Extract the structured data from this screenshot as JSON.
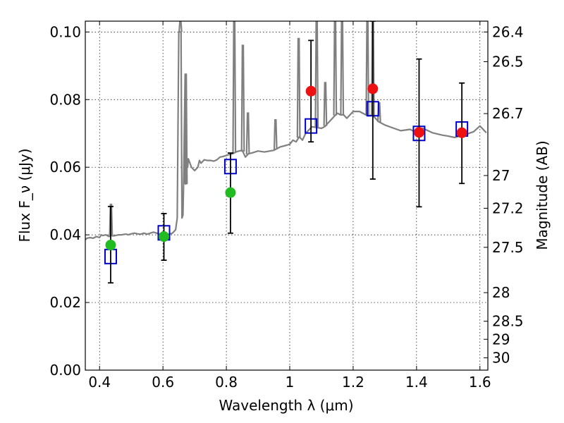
{
  "chart_data": {
    "type": "scatter",
    "xlabel": "Wavelength λ (μm)",
    "ylabel": "Flux F_ν (μJy)",
    "y2label": "Magnitude (AB)",
    "xlim": [
      0.355,
      1.625
    ],
    "ylim": [
      0.0,
      0.1032
    ],
    "grid": true,
    "x_ticks": [
      0.4,
      0.6,
      0.8,
      1.0,
      1.2,
      1.4,
      1.6
    ],
    "x_tick_labels": [
      "0.4",
      "0.6",
      "0.8",
      "1",
      "1.2",
      "1.4",
      "1.6"
    ],
    "y_ticks": [
      0.0,
      0.02,
      0.04,
      0.06,
      0.08,
      0.1
    ],
    "y_tick_labels": [
      "0.00",
      "0.02",
      "0.04",
      "0.06",
      "0.08",
      "0.10"
    ],
    "y2_ticks": [
      26.4,
      26.5,
      26.7,
      27,
      27.2,
      27.5,
      28,
      28.5,
      29,
      30
    ],
    "y2_tick_labels": [
      "26.4",
      "26.5",
      "26.7",
      "27",
      "27.2",
      "27.5",
      "28",
      "28.5",
      "29",
      "30"
    ],
    "colors": {
      "spectrum": "#808080",
      "model_squares": "#0000cc",
      "green_points": "#22bb22",
      "red_points": "#ee1111",
      "errorbars": "#000000"
    },
    "series": [
      {
        "type": "line",
        "x": [
          0.355,
          0.36,
          0.37,
          0.38,
          0.39,
          0.4,
          0.405,
          0.41,
          0.42,
          0.43,
          0.435,
          0.44,
          0.45,
          0.46,
          0.47,
          0.48,
          0.485,
          0.49,
          0.5,
          0.51,
          0.52,
          0.53,
          0.54,
          0.55,
          0.56,
          0.57,
          0.58,
          0.59,
          0.6,
          0.61,
          0.62,
          0.63,
          0.64,
          0.645,
          0.65,
          0.652,
          0.655,
          0.656,
          0.657,
          0.66,
          0.663,
          0.665,
          0.67,
          0.672,
          0.675,
          0.678,
          0.68,
          0.69,
          0.7,
          0.71,
          0.715,
          0.72,
          0.73,
          0.74,
          0.75,
          0.76,
          0.77,
          0.78,
          0.79,
          0.8,
          0.81,
          0.82,
          0.83,
          0.84,
          0.85,
          0.86,
          0.87,
          0.88,
          0.9,
          0.92,
          0.95,
          0.97,
          0.99,
          1.0,
          1.01,
          1.02,
          1.03,
          1.04,
          1.05,
          1.06,
          1.07,
          1.08,
          1.1,
          1.11,
          1.12,
          1.13,
          1.14,
          1.15,
          1.16,
          1.17,
          1.18,
          1.2,
          1.22,
          1.24,
          1.25,
          1.26,
          1.28,
          1.3,
          1.32,
          1.35,
          1.38,
          1.4,
          1.42,
          1.45,
          1.48,
          1.5,
          1.52,
          1.55,
          1.58,
          1.6,
          1.62
        ],
        "y": [
          0.0385,
          0.039,
          0.0392,
          0.039,
          0.0395,
          0.0392,
          0.04,
          0.0398,
          0.04,
          0.0395,
          0.04,
          0.0397,
          0.0398,
          0.04,
          0.04,
          0.0402,
          0.0402,
          0.04,
          0.0403,
          0.0405,
          0.0403,
          0.0402,
          0.0405,
          0.0402,
          0.0405,
          0.0408,
          0.0405,
          0.0402,
          0.0398,
          0.04,
          0.0402,
          0.0405,
          0.0415,
          0.045,
          0.1,
          0.1,
          0.1,
          0.1,
          0.1,
          0.045,
          0.0458,
          0.055,
          0.0875,
          0.055,
          0.062,
          0.06,
          0.0625,
          0.06,
          0.059,
          0.06,
          0.062,
          0.0612,
          0.0622,
          0.062,
          0.062,
          0.0618,
          0.0622,
          0.063,
          0.0632,
          0.0635,
          0.0638,
          0.064,
          0.0645,
          0.0648,
          0.065,
          0.063,
          0.064,
          0.0642,
          0.0648,
          0.0645,
          0.065,
          0.066,
          0.0665,
          0.0668,
          0.068,
          0.0675,
          0.069,
          0.068,
          0.07,
          0.071,
          0.072,
          0.0718,
          0.0715,
          0.072,
          0.073,
          0.074,
          0.075,
          0.076,
          0.0755,
          0.0755,
          0.0745,
          0.0765,
          0.0765,
          0.0755,
          0.0752,
          0.0755,
          0.0735,
          0.0725,
          0.0718,
          0.0708,
          0.0712,
          0.0702,
          0.0715,
          0.0702,
          0.0695,
          0.0692,
          0.0688,
          0.0695,
          0.0705,
          0.0722,
          0.0702
        ],
        "emission_lines": [
          {
            "x": 0.436,
            "peak": 0.049
          },
          {
            "x": 0.655,
            "peak": 0.1032
          },
          {
            "x": 0.672,
            "peak": 0.0875
          },
          {
            "x": 0.825,
            "peak": 0.1032
          },
          {
            "x": 0.852,
            "peak": 0.096
          },
          {
            "x": 0.868,
            "peak": 0.076
          },
          {
            "x": 0.955,
            "peak": 0.074
          },
          {
            "x": 1.028,
            "peak": 0.098
          },
          {
            "x": 1.085,
            "peak": 0.1032
          },
          {
            "x": 1.112,
            "peak": 0.085
          },
          {
            "x": 1.143,
            "peak": 0.1032
          },
          {
            "x": 1.165,
            "peak": 0.1032
          },
          {
            "x": 1.245,
            "peak": 0.1032
          },
          {
            "x": 1.262,
            "peak": 0.1032
          },
          {
            "x": 1.282,
            "peak": 0.079
          }
        ]
      },
      {
        "type": "scatter",
        "marker": "square",
        "x": [
          0.435,
          0.603,
          0.813,
          1.067,
          1.262,
          1.408,
          1.543
        ],
        "y": [
          0.0336,
          0.0406,
          0.0602,
          0.0722,
          0.0773,
          0.07,
          0.0713
        ]
      },
      {
        "type": "scatter",
        "marker": "circle",
        "x": [
          0.435,
          0.603,
          0.813
        ],
        "y": [
          0.037,
          0.0395,
          0.0525
        ],
        "yerr_low": [
          0.0258,
          0.0325,
          0.0405
        ],
        "yerr_high": [
          0.0484,
          0.0463,
          0.0642
        ]
      },
      {
        "type": "scatter",
        "marker": "circle",
        "x": [
          1.067,
          1.262,
          1.408,
          1.543
        ],
        "y": [
          0.0825,
          0.0832,
          0.0703,
          0.0702
        ],
        "yerr_low": [
          0.0675,
          0.0565,
          0.0483,
          0.0552
        ],
        "yerr_high": [
          0.0975,
          0.1032,
          0.092,
          0.0849
        ]
      }
    ]
  }
}
